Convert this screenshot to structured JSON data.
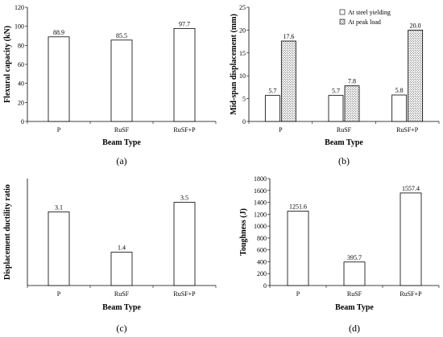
{
  "chart_data": [
    {
      "type": "bar",
      "panel_label": "(a)",
      "categories": [
        "P",
        "RuSF",
        "RuSF+P"
      ],
      "series": [
        {
          "values": [
            88.9,
            85.5,
            97.7
          ],
          "fill": "plain",
          "labels": [
            "88.9",
            "85.5",
            "97.7"
          ]
        }
      ],
      "xlabel": "Beam Type",
      "ylabel": "Flexural capacity (kN)",
      "ylim": [
        0,
        120
      ],
      "yticks": [
        "0",
        "20",
        "40",
        "60",
        "80",
        "100",
        "120"
      ],
      "grid": false
    },
    {
      "type": "bar",
      "panel_label": "(b)",
      "categories": [
        "P",
        "RuSF",
        "RuSF+P"
      ],
      "series": [
        {
          "name": "At steel yielding",
          "values": [
            5.7,
            5.7,
            5.8
          ],
          "fill": "plain",
          "labels": [
            "5.7",
            "5.7",
            "5.8"
          ]
        },
        {
          "name": "At peak load",
          "values": [
            17.6,
            7.8,
            20.0
          ],
          "fill": "dotted",
          "labels": [
            "17.6",
            "7.8",
            "20.0"
          ]
        }
      ],
      "xlabel": "Beam Type",
      "ylabel": "Mid-span displacement (mm)",
      "ylim": [
        0,
        25
      ],
      "yticks": [
        "0",
        "5",
        "10",
        "15",
        "20",
        "25"
      ],
      "legend_position": "top-right",
      "grid": false
    },
    {
      "type": "bar",
      "panel_label": "(c)",
      "categories": [
        "P",
        "RuSF",
        "RuSF+P"
      ],
      "series": [
        {
          "values": [
            3.1,
            1.4,
            3.5
          ],
          "fill": "plain",
          "labels": [
            "3.1",
            "1.4",
            "3.5"
          ]
        }
      ],
      "xlabel": "Beam Type",
      "ylabel": "Displacement ductility  ratio",
      "ylim": [
        0,
        4.5
      ],
      "yticks": [],
      "grid": false
    },
    {
      "type": "bar",
      "panel_label": "(d)",
      "categories": [
        "P",
        "RuSF",
        "RuSF+P"
      ],
      "series": [
        {
          "values": [
            1251.6,
            395.7,
            1557.4
          ],
          "fill": "plain",
          "labels": [
            "1251.6",
            "395.7",
            "1557.4"
          ]
        }
      ],
      "xlabel": "Beam Type",
      "ylabel": "Toughness (J)",
      "ylim": [
        0,
        1800
      ],
      "yticks": [
        "0",
        "200",
        "400",
        "600",
        "800",
        "1000",
        "1200",
        "1400",
        "1600",
        "1800"
      ],
      "grid": false
    }
  ]
}
